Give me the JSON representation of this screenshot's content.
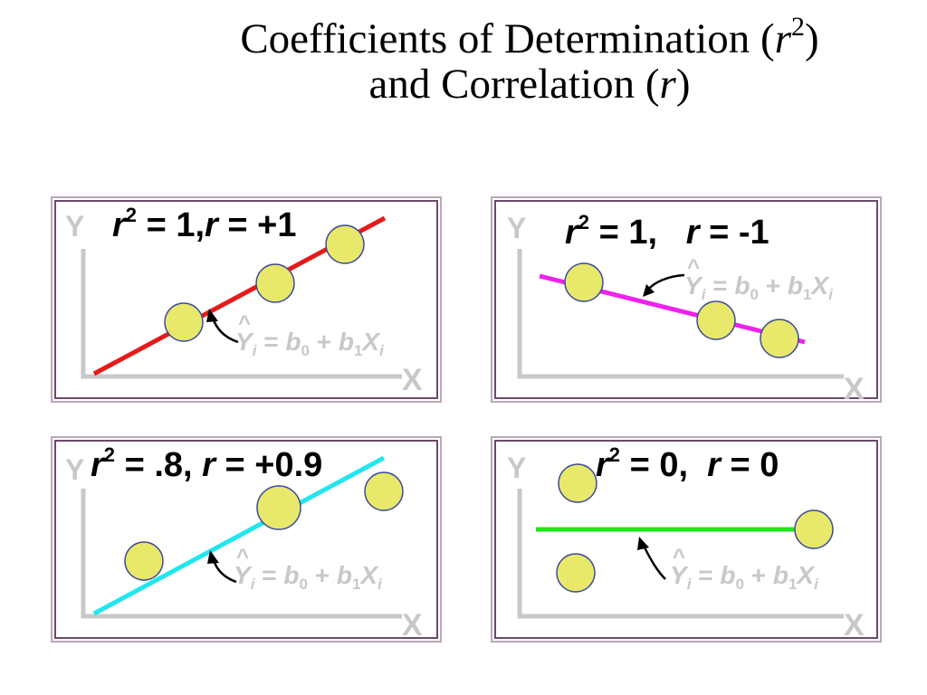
{
  "title": {
    "line1_pre": "Coefficients of Determination (",
    "line1_var": "r",
    "line1_sup": "2",
    "line1_post": ")",
    "line2_pre": "and Correlation (",
    "line2_var": "r",
    "line2_post": ")"
  },
  "axis": {
    "y": "Y",
    "x": "X"
  },
  "equation": {
    "hat": "^",
    "y": "Y",
    "y_sub": "i",
    "mid": " = ",
    "b0": "b",
    "b0_sub": "0",
    "plus": " + ",
    "b1": "b",
    "b1_sub": "1",
    "x": "X",
    "x_sub": "i"
  },
  "panels": [
    {
      "r_var": "r",
      "r2_sup": "2",
      "r2_value": " = 1,",
      "r_label": "r",
      "r_value": " = +1",
      "line_color": "#e51a1a"
    },
    {
      "r_var": "r",
      "r2_sup": "2",
      "r2_value": " = 1,",
      "r_label": "r",
      "r_value": " = -1",
      "line_color": "#ee22ee"
    },
    {
      "r_var": "r",
      "r2_sup": "2",
      "r2_value": " = .8,",
      "r_label": "r",
      "r_value": " = +0.9",
      "line_color": "#22e6ee"
    },
    {
      "r_var": "r",
      "r2_sup": "2",
      "r2_value": " = 0,",
      "r_label": "r",
      "r_value": " = 0",
      "line_color": "#22e61a"
    }
  ],
  "colors": {
    "point_fill": "#e8e86a",
    "point_stroke": "#3a4a9a",
    "axis": "#c8c8c8",
    "frame": "#6a4a6a"
  }
}
